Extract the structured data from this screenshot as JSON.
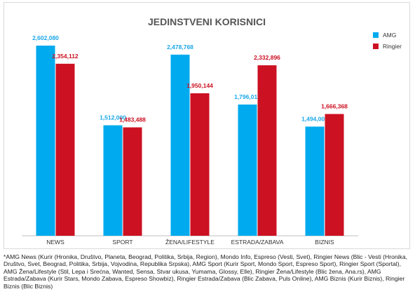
{
  "chart_data": {
    "type": "bar",
    "title": "JEDINSTVENI KORISNICI",
    "categories": [
      "NEWS",
      "SPORT",
      "ŽENA/LIFESTYLE",
      "ESTRADA/ZABAVA",
      "BIZNIS"
    ],
    "series": [
      {
        "name": "AMG",
        "values": [
          2602080,
          1512000,
          2478768,
          1796016,
          1494000
        ],
        "labels": [
          "2,602,080",
          "1,512,000",
          "2,478,768",
          "1,796,016",
          "1,494,000"
        ]
      },
      {
        "name": "Ringier",
        "values": [
          2354112,
          1483488,
          1950144,
          2332896,
          1666368
        ],
        "labels": [
          "2,354,112",
          "1,483,488",
          "1,950,144",
          "2,332,896",
          "1,666,368"
        ]
      }
    ],
    "ylim": [
      0,
      2900000
    ],
    "grid": false,
    "legend": "top-right",
    "xlabel": "",
    "ylabel": ""
  },
  "colors": {
    "AMG": "#00aaee",
    "Ringier": "#cc1122",
    "amg_label": "#1aa7e8",
    "ringier_label": "#cc1122",
    "title": "#555555"
  },
  "footnote": "*AMG News (Kurir (Hronika, Društvo, Planeta, Beograd, Politika, Srbija, Region), Mondo Info, Espreso (Vesti, Svet), Ringier News (Blic - Vesti (Hronika, Društvo, Svet, Beograd, Politika, Srbija, Vojvodina, Republika Srpska), AMG Sport (Kurir Sport, Mondo Sport, Espreso Sport), Ringier Sport (Sportal), AMG Žena/Lifestyle (Stil, Lepa i Srećna, Wanted, Sensa, Stvar ukusa, Yumama, Glossy, Elle), Ringier Žena/Lifestyle (Blic žena, Ana.rs), AMG Estrada/Zabava (Kurir Stars, Mondo Zabava, Espreso Showbiz), Ringier Estrada/Zabava (Blic Zabava, Puls Online), AMG Biznis (Kurir Biznis), Ringier Biznis (Blic Biznis)"
}
